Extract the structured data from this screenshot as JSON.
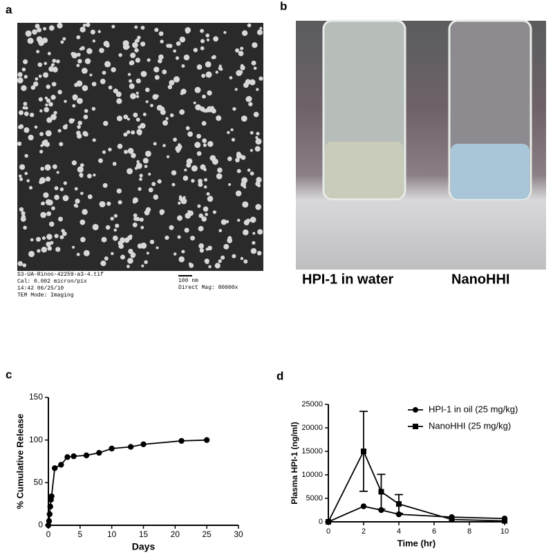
{
  "panel_labels": [
    "a",
    "b",
    "c",
    "d"
  ],
  "tem_caption": {
    "lines": [
      "S3-UA-Rinoo-42259-a3-4.tif",
      "Cal: 0.002 micron/pix",
      "14:42 06/25/10",
      "TEM Mode: Imaging"
    ],
    "scale": "100 nm",
    "mag": "Direct Mag: 80000x"
  },
  "photo_labels": [
    "HPI-1 in water",
    "NanoHHI"
  ],
  "chart_data": [
    {
      "type": "line",
      "xlabel": "Days",
      "ylabel": "% Cumulative Release",
      "x": [
        0,
        0.1,
        0.2,
        0.3,
        0.4,
        0.5,
        1,
        2,
        3,
        4,
        6,
        8,
        10,
        13,
        15,
        21,
        25
      ],
      "values": [
        0,
        5,
        13,
        22,
        30,
        34,
        67,
        71,
        80,
        81,
        82,
        85,
        90,
        92,
        95,
        99,
        100
      ],
      "color": "#000000",
      "marker": "circle",
      "xlim": [
        0,
        30
      ],
      "xticks": [
        0,
        5,
        10,
        15,
        20,
        25,
        30
      ],
      "ylim": [
        0,
        150
      ],
      "yticks": [
        0,
        50,
        100,
        150
      ],
      "grid": false
    },
    {
      "type": "line",
      "xlabel": "Time (hr)",
      "ylabel": "Plasma HPI-1 (ng/ml)",
      "x": [
        0,
        2,
        3,
        4,
        7,
        10
      ],
      "series": [
        {
          "name": "HPI-1 in oil (25 mg/kg)",
          "color": "#000000",
          "marker": "circle",
          "values": [
            0,
            3300,
            2500,
            1600,
            1000,
            700
          ]
        },
        {
          "name": "NanoHHI (25 mg/kg)",
          "color": "#000000",
          "marker": "square",
          "values": [
            0,
            15000,
            6400,
            3800,
            500,
            200
          ],
          "errors": [
            null,
            8500,
            3700,
            2000,
            null,
            null
          ]
        }
      ],
      "xlim": [
        0,
        10
      ],
      "xticks": [
        0,
        2,
        4,
        6,
        8,
        10
      ],
      "ylim": [
        0,
        25000
      ],
      "yticks": [
        0,
        5000,
        10000,
        15000,
        20000,
        25000
      ],
      "grid": false,
      "legend": "upper right"
    }
  ]
}
